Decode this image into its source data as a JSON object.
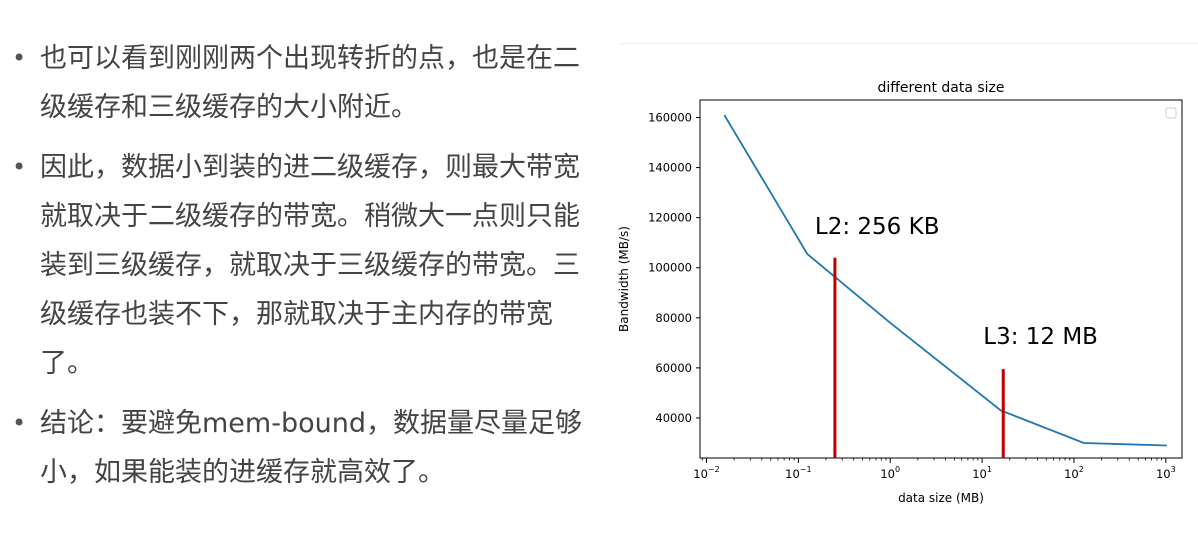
{
  "bullets": [
    {
      "text": "也可以看到刚刚两个出现转折的点，也是在二级缓存和三级缓存的大小附近。"
    },
    {
      "text": "因此，数据小到装的进二级缓存，则最大带宽就取决于二级缓存的带宽。稍微大一点则只能装到三级缓存，就取决于三级缓存的带宽。三级缓存也装不下，那就取决于主内存的带宽了。"
    },
    {
      "text": "结论：要避免mem-bound，数据量尽量足够小，如果能装的进缓存就高效了。"
    }
  ],
  "bullet_glyph": "•",
  "chart_data": {
    "type": "line",
    "title": "different data size",
    "xlabel": "data size (MB)",
    "ylabel": "Bandwidth (MB/s)",
    "xscale": "log",
    "xlim": [
      0.0085,
      1500
    ],
    "ylim": [
      24000,
      167000
    ],
    "x_ticks": [
      {
        "value": 0.01,
        "base": "10",
        "exp": "−2"
      },
      {
        "value": 0.1,
        "base": "10",
        "exp": "−1"
      },
      {
        "value": 1,
        "base": "10",
        "exp": "0"
      },
      {
        "value": 10,
        "base": "10",
        "exp": "1"
      },
      {
        "value": 100,
        "base": "10",
        "exp": "2"
      },
      {
        "value": 1000,
        "base": "10",
        "exp": "3"
      }
    ],
    "y_ticks": [
      {
        "value": 40000,
        "label": "40000"
      },
      {
        "value": 60000,
        "label": "60000"
      },
      {
        "value": 80000,
        "label": "80000"
      },
      {
        "value": 100000,
        "label": "100000"
      },
      {
        "value": 120000,
        "label": "120000"
      },
      {
        "value": 140000,
        "label": "140000"
      },
      {
        "value": 160000,
        "label": "160000"
      }
    ],
    "series": [
      {
        "color": "#1f77b4",
        "x": [
          0.015625,
          0.125,
          1,
          16,
          128,
          1024
        ],
        "y": [
          161000,
          105500,
          78000,
          43000,
          30000,
          29000
        ]
      }
    ],
    "annotations": [
      {
        "text": "L2: 256 KB",
        "x": 0.25,
        "line_top": 104000,
        "line_bottom": 24000,
        "text_y": 113500,
        "color": "#c00000"
      },
      {
        "text": "L3: 12 MB",
        "x": 17,
        "line_top": 59500,
        "line_bottom": 24000,
        "text_y": 69500,
        "color": "#c00000"
      }
    ],
    "grid": false,
    "legend": "top-right (empty)"
  }
}
